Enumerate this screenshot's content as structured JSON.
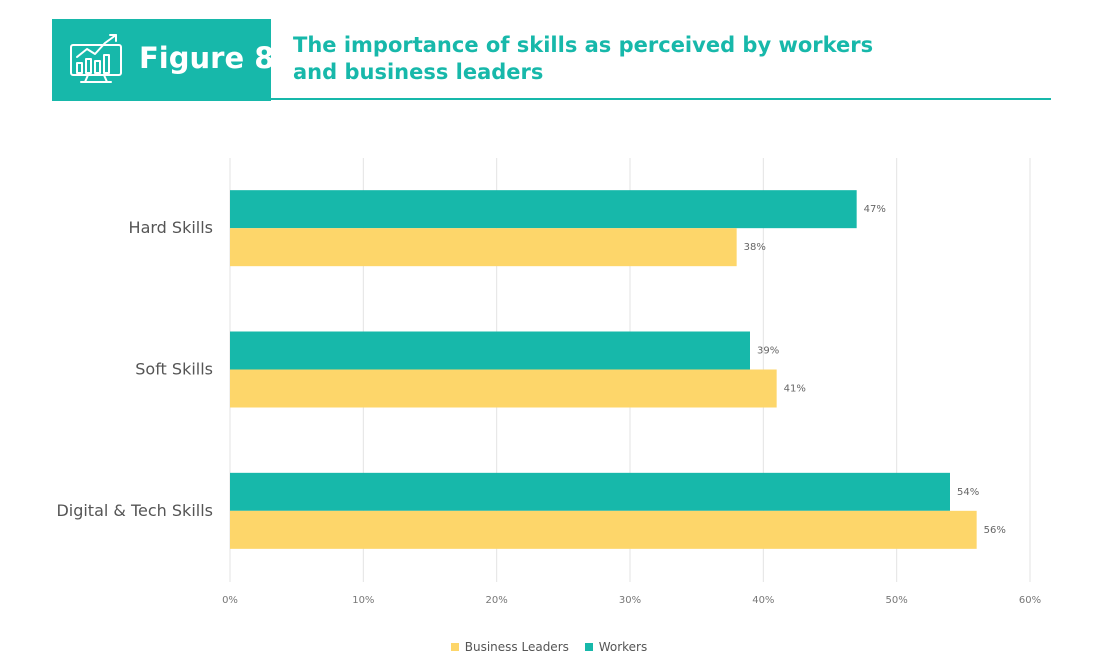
{
  "header": {
    "figure_label": "Figure 8",
    "title_line1": "The importance of skills as perceived by workers",
    "title_line2": "and business leaders",
    "icon": "chart-monitor-icon"
  },
  "colors": {
    "teal": "#17b8aa",
    "yellow": "#fdd66a",
    "grid": "#e3e3e3",
    "text": "#555555"
  },
  "chart_data": {
    "type": "bar",
    "orientation": "horizontal",
    "categories": [
      "Hard Skills",
      "Soft Skills",
      "Digital & Tech Skills"
    ],
    "series": [
      {
        "name": "Workers",
        "color": "#17b8aa",
        "values": [
          47,
          39,
          54
        ],
        "labels": [
          "47%",
          "39%",
          "54%"
        ]
      },
      {
        "name": "Business Leaders",
        "color": "#fdd66a",
        "values": [
          38,
          41,
          56
        ],
        "labels": [
          "38%",
          "41%",
          "56%"
        ]
      }
    ],
    "x_ticks": [
      0,
      10,
      20,
      30,
      40,
      50,
      60
    ],
    "x_tick_labels": [
      "0%",
      "10%",
      "20%",
      "30%",
      "40%",
      "50%",
      "60%"
    ],
    "xlim": [
      0,
      60
    ],
    "grid": true,
    "legend_position": "bottom",
    "legend": [
      "Business Leaders",
      "Workers"
    ]
  }
}
